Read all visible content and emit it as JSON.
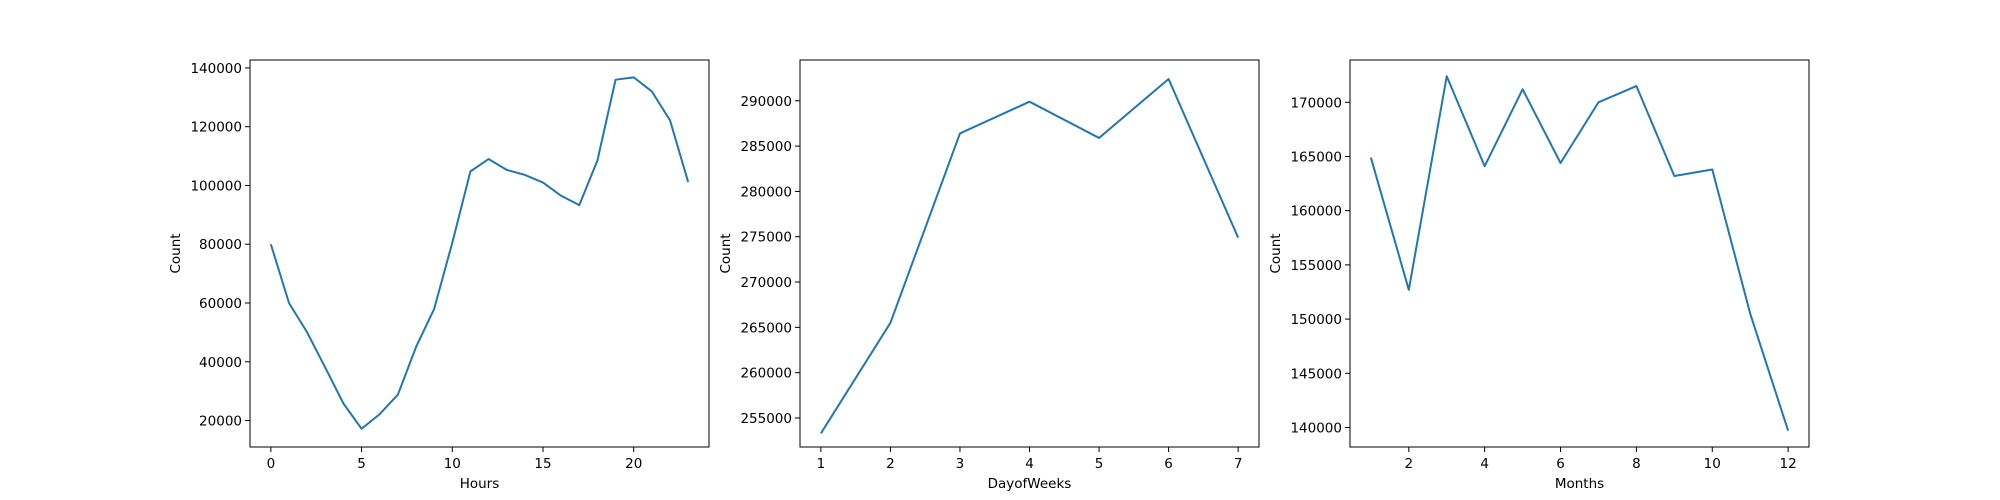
{
  "chart_data": [
    {
      "type": "line",
      "xlabel": "Hours",
      "ylabel": "Count",
      "color": "#1f77b4",
      "grid": false,
      "xlim": [
        -1.15,
        24.15
      ],
      "ylim": [
        11000,
        142700
      ],
      "xticks": [
        0,
        5,
        10,
        15,
        20
      ],
      "yticks": [
        20000,
        40000,
        60000,
        80000,
        100000,
        120000,
        140000
      ],
      "x": [
        0,
        1,
        2,
        3,
        4,
        5,
        6,
        7,
        8,
        9,
        10,
        11,
        12,
        13,
        14,
        15,
        16,
        17,
        18,
        19,
        20,
        21,
        22,
        23
      ],
      "y": [
        80000,
        60000,
        50000,
        38000,
        25800,
        17200,
        22200,
        28800,
        45000,
        58000,
        80500,
        104800,
        109000,
        105300,
        103600,
        101000,
        96500,
        93300,
        108500,
        136000,
        136800,
        132000,
        122200,
        101200
      ]
    },
    {
      "type": "line",
      "xlabel": "DayofWeeks",
      "ylabel": "Count",
      "color": "#1f77b4",
      "grid": false,
      "xlim": [
        0.7,
        7.3
      ],
      "ylim": [
        251800,
        294500
      ],
      "xticks": [
        1,
        2,
        3,
        4,
        5,
        6,
        7
      ],
      "yticks": [
        255000,
        260000,
        265000,
        270000,
        275000,
        280000,
        285000,
        290000
      ],
      "x": [
        1,
        2,
        3,
        4,
        5,
        6,
        7
      ],
      "y": [
        253300,
        265500,
        286400,
        289900,
        285900,
        292400,
        274900
      ]
    },
    {
      "type": "line",
      "xlabel": "Months",
      "ylabel": "Count",
      "color": "#1f77b4",
      "grid": false,
      "xlim": [
        0.45,
        12.55
      ],
      "ylim": [
        138200,
        173900
      ],
      "xticks": [
        2,
        4,
        6,
        8,
        10,
        12
      ],
      "yticks": [
        140000,
        145000,
        150000,
        155000,
        160000,
        165000,
        170000
      ],
      "x": [
        1,
        2,
        3,
        4,
        5,
        6,
        7,
        8,
        9,
        10,
        11,
        12
      ],
      "y": [
        164900,
        152700,
        172400,
        164100,
        171200,
        164400,
        170000,
        171500,
        163200,
        163800,
        150500,
        139700
      ]
    }
  ]
}
